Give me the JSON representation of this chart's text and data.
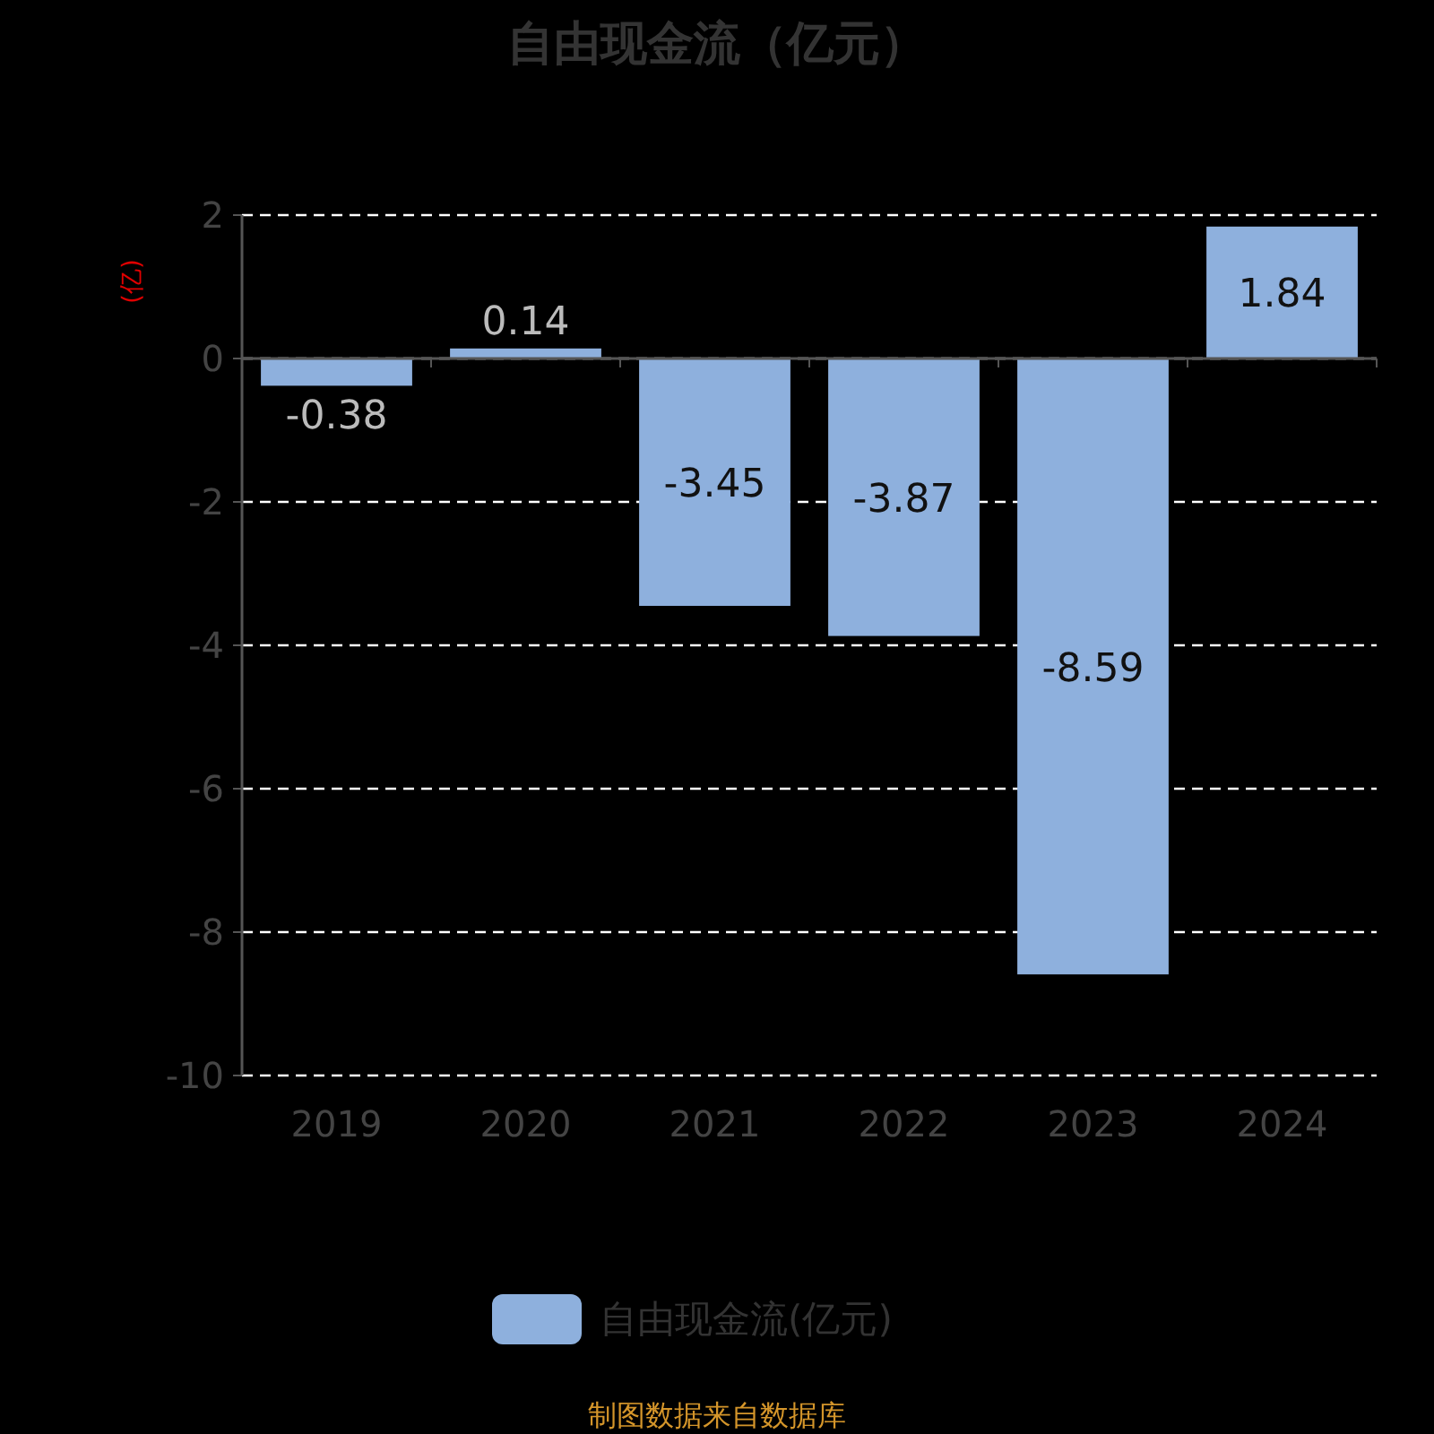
{
  "chart_data": {
    "type": "bar",
    "title": "自由现金流（亿元）",
    "ylabel": "(亿)",
    "categories": [
      "2019",
      "2020",
      "2021",
      "2022",
      "2023",
      "2024"
    ],
    "series": [
      {
        "name": "自由现金流(亿元)",
        "color": "#8eb0dd",
        "values": [
          -0.38,
          0.14,
          -3.45,
          -3.87,
          -8.59,
          1.84
        ]
      }
    ],
    "ylim": [
      -10,
      2
    ],
    "yticks": [
      -10,
      -8,
      -6,
      -4,
      -2,
      0,
      2
    ],
    "grid": "y",
    "legend": "bottom",
    "data_labels": true,
    "annotations": [
      "制图数据来自数据库"
    ]
  }
}
